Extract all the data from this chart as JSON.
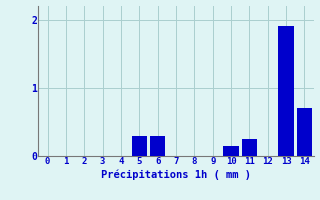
{
  "categories": [
    0,
    1,
    2,
    3,
    4,
    5,
    6,
    7,
    8,
    9,
    10,
    11,
    12,
    13,
    14
  ],
  "values": [
    0,
    0,
    0,
    0,
    0,
    0.3,
    0.3,
    0,
    0,
    0,
    0.15,
    0.25,
    0.0,
    1.9,
    0.7
  ],
  "bar_color": "#0000cc",
  "background_color": "#dff4f4",
  "grid_color": "#aacece",
  "xlabel": "Précipitations 1h ( mm )",
  "xlabel_color": "#0000cc",
  "tick_color": "#0000cc",
  "ylim": [
    0,
    2.2
  ],
  "yticks": [
    0,
    1,
    2
  ],
  "xlim": [
    -0.5,
    14.5
  ],
  "bar_width": 0.85,
  "figsize": [
    3.2,
    2.0
  ],
  "dpi": 100,
  "spine_color": "#777777",
  "xlabel_fontsize": 7.5,
  "tick_fontsize": 6.5
}
